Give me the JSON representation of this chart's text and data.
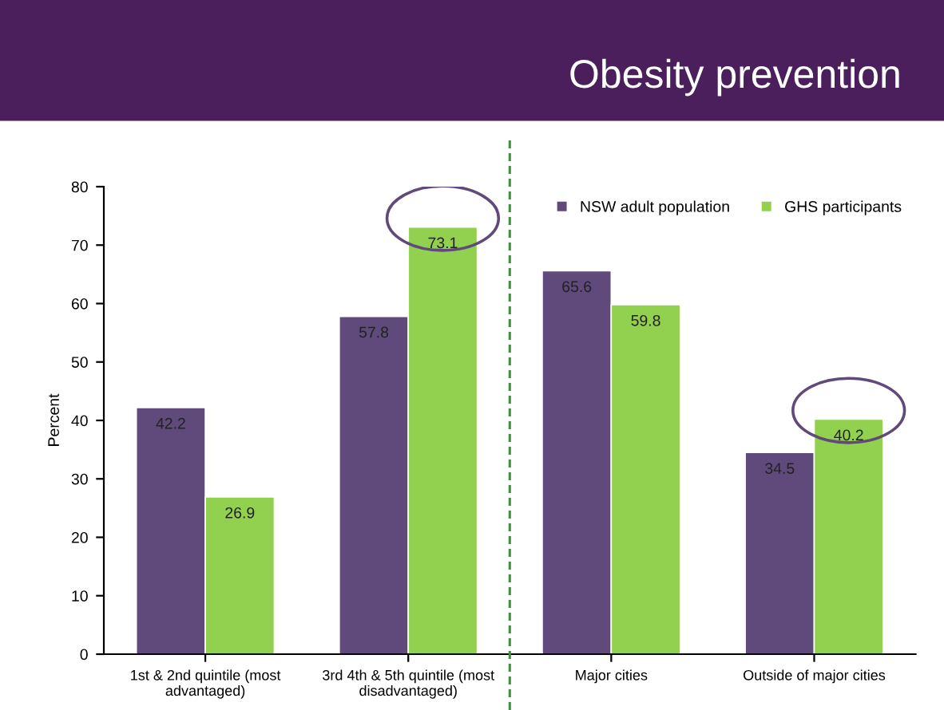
{
  "chart_data": {
    "type": "bar",
    "title": "Obesity prevention",
    "ylabel": "Percent",
    "categories": [
      "1st & 2nd quintile (most advantaged)",
      "3rd 4th & 5th quintile (most disadvantaged)",
      "Major cities",
      "Outside of major cities"
    ],
    "series": [
      {
        "name": "NSW adult population",
        "color": "#604a7b",
        "values": [
          42.2,
          57.8,
          65.6,
          34.5
        ]
      },
      {
        "name": "GHS participants",
        "color": "#92d050",
        "values": [
          26.9,
          73.1,
          59.8,
          40.2
        ]
      }
    ],
    "ylim": [
      0,
      80
    ],
    "yticks": [
      0,
      10,
      20,
      30,
      40,
      50,
      60,
      70,
      80
    ],
    "data_labels": true,
    "legend": "top right",
    "grid": false
  }
}
